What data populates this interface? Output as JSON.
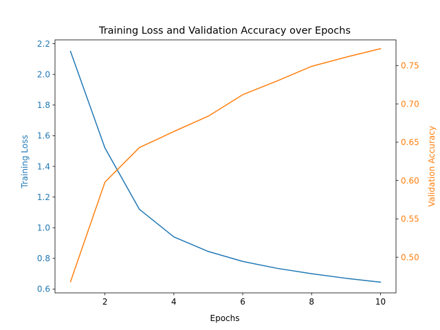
{
  "chart_data": {
    "type": "line",
    "title": "Training Loss and Validation Accuracy over Epochs",
    "xlabel": "Epochs",
    "x": [
      1,
      2,
      3,
      4,
      5,
      6,
      7,
      8,
      9,
      10
    ],
    "xlim": [
      0.55,
      10.45
    ],
    "xticks": [
      2,
      4,
      6,
      8,
      10
    ],
    "axes": {
      "left": {
        "label": "Training Loss",
        "color": "#1f77b4",
        "ylim": [
          0.575,
          2.225
        ],
        "ticks": [
          0.6,
          0.8,
          1.0,
          1.2,
          1.4,
          1.6,
          1.8,
          2.0,
          2.2
        ],
        "tick_decimals": 1
      },
      "right": {
        "label": "Validation Accuracy",
        "color": "#ff7f0e",
        "ylim": [
          0.4535,
          0.7835
        ],
        "ticks": [
          0.5,
          0.55,
          0.6,
          0.65,
          0.7,
          0.75
        ],
        "tick_decimals": 2
      }
    },
    "series": [
      {
        "axis": "left",
        "color": "#1f77b4",
        "values": [
          2.15,
          1.52,
          1.12,
          0.94,
          0.845,
          0.78,
          0.735,
          0.7,
          0.67,
          0.645
        ]
      },
      {
        "axis": "right",
        "color": "#ff7f0e",
        "values": [
          0.468,
          0.598,
          0.643,
          0.664,
          0.684,
          0.712,
          0.73,
          0.749,
          0.761,
          0.772
        ]
      }
    ],
    "grid": false,
    "legend": "none"
  }
}
